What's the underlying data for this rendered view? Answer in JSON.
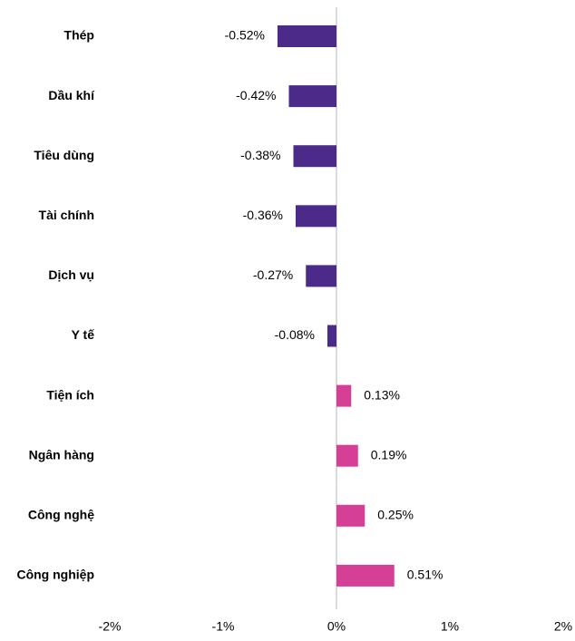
{
  "chart_data": {
    "type": "barh",
    "categories": [
      "Thép",
      "Dầu khí",
      "Tiêu dùng",
      "Tài chính",
      "Dịch vụ",
      "Y tế",
      "Tiện ích",
      "Ngân hàng",
      "Công nghệ",
      "Công nghiệp"
    ],
    "values": [
      -0.52,
      -0.42,
      -0.38,
      -0.36,
      -0.27,
      -0.08,
      0.13,
      0.19,
      0.25,
      0.51
    ],
    "value_labels": [
      "-0.52%",
      "-0.42%",
      "-0.38%",
      "-0.36%",
      "-0.27%",
      "-0.08%",
      "0.13%",
      "0.19%",
      "0.25%",
      "0.51%"
    ],
    "negative_color": "#4b2a8a",
    "positive_color": "#d63f96",
    "xlim": [
      -2,
      2
    ],
    "xticks": [
      {
        "value": -2,
        "label": "-2%"
      },
      {
        "value": -1,
        "label": "-1%"
      },
      {
        "value": 0,
        "label": "0%"
      },
      {
        "value": 1,
        "label": "1%"
      },
      {
        "value": 2,
        "label": "2%"
      }
    ],
    "grid": false
  }
}
